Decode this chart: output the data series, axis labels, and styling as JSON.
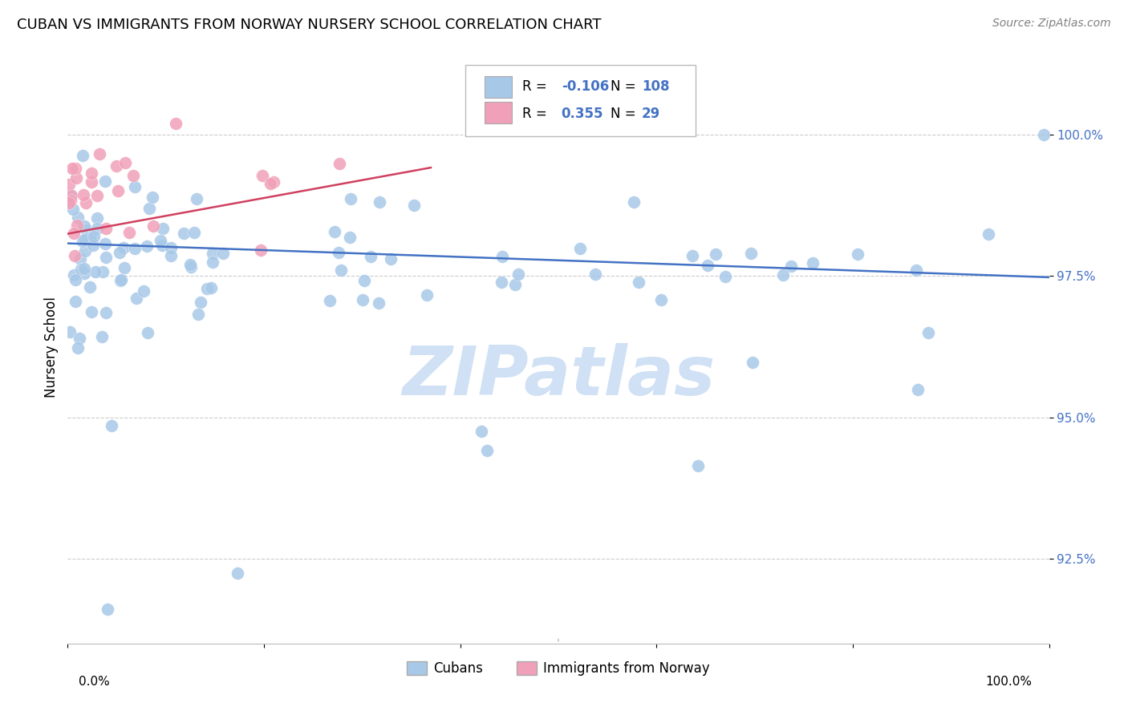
{
  "title": "CUBAN VS IMMIGRANTS FROM NORWAY NURSERY SCHOOL CORRELATION CHART",
  "source": "Source: ZipAtlas.com",
  "ylabel": "Nursery School",
  "xlim": [
    0.0,
    100.0
  ],
  "ylim": [
    91.0,
    101.5
  ],
  "legend_r_blue": "-0.106",
  "legend_n_blue": "108",
  "legend_r_pink": "0.355",
  "legend_n_pink": "29",
  "blue_color": "#A8C8E8",
  "pink_color": "#F0A0B8",
  "trend_blue_color": "#4472C4",
  "trend_pink_color": "#D04060",
  "watermark_color": "#D0E0F5",
  "figsize": [
    14.06,
    8.92
  ],
  "dpi": 100
}
